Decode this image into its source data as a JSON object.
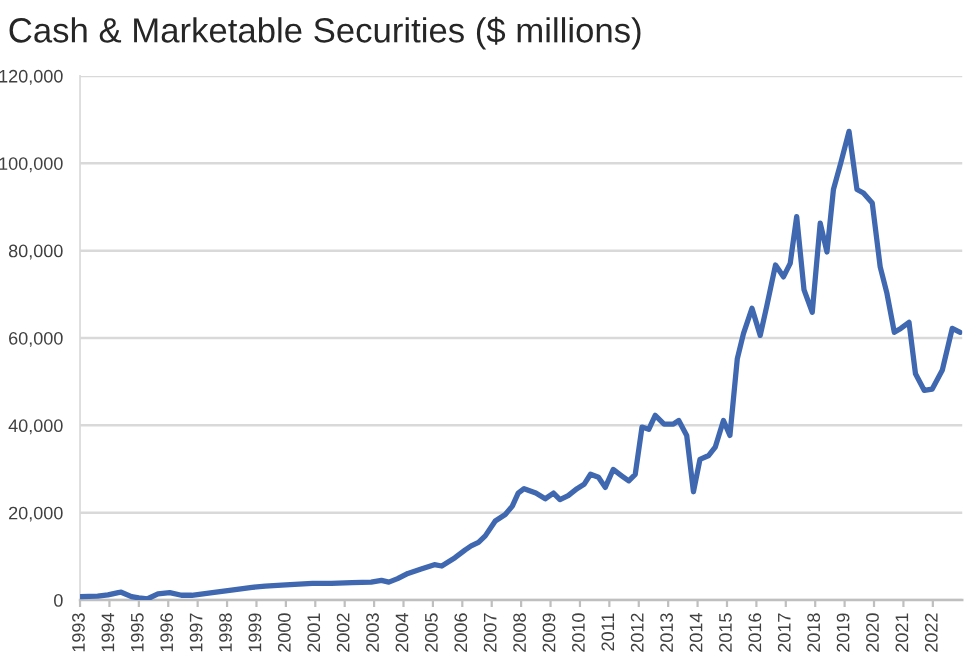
{
  "chart_data": {
    "type": "line",
    "title": "Cash & Marketable Securities ($ millions)",
    "x": [
      1993.0,
      1993.6,
      1993.95,
      1994.3,
      1994.4,
      1994.75,
      1995.0,
      1995.3,
      1995.65,
      1996.05,
      1996.45,
      1996.8,
      1997.5,
      1998.15,
      1998.85,
      1999.3,
      2000.0,
      2000.9,
      2001.55,
      2002.25,
      2002.9,
      2003.25,
      2003.5,
      2003.8,
      2004.15,
      2004.6,
      2005.05,
      2005.3,
      2005.75,
      2006.1,
      2006.3,
      2006.55,
      2006.78,
      2007.12,
      2007.46,
      2007.7,
      2007.9,
      2008.1,
      2008.5,
      2008.82,
      2009.1,
      2009.32,
      2009.6,
      2009.9,
      2010.14,
      2010.36,
      2010.63,
      2010.86,
      2011.13,
      2011.43,
      2011.66,
      2011.88,
      2012.11,
      2012.34,
      2012.56,
      2012.86,
      2013.18,
      2013.36,
      2013.63,
      2013.86,
      2014.08,
      2014.38,
      2014.6,
      2014.88,
      2015.1,
      2015.35,
      2015.56,
      2015.85,
      2016.13,
      2016.35,
      2016.65,
      2016.92,
      2017.15,
      2017.37,
      2017.62,
      2017.9,
      2018.17,
      2018.4,
      2018.62,
      2018.87,
      2019.15,
      2019.42,
      2019.64,
      2019.94,
      2020.21,
      2020.44,
      2020.69,
      2020.91,
      2021.19,
      2021.41,
      2021.71,
      2021.98,
      2022.32,
      2022.66,
      2022.93
    ],
    "values": [
      800,
      900,
      1200,
      1700,
      1800,
      800,
      500,
      300,
      1400,
      1700,
      1100,
      1100,
      1700,
      2300,
      2900,
      3200,
      3500,
      3800,
      3800,
      4000,
      4100,
      4500,
      4100,
      4900,
      6100,
      7100,
      8100,
      7800,
      9700,
      11500,
      12400,
      13200,
      14700,
      18100,
      19600,
      21500,
      24500,
      25500,
      24500,
      23200,
      24500,
      23000,
      23900,
      25500,
      26500,
      28800,
      28100,
      25800,
      29900,
      28400,
      27300,
      28800,
      39600,
      39100,
      42300,
      40300,
      40300,
      41100,
      37700,
      24800,
      32200,
      33100,
      35000,
      41100,
      37700,
      55200,
      61000,
      66800,
      60600,
      67200,
      76700,
      74000,
      77100,
      87800,
      71000,
      65900,
      86300,
      79700,
      94000,
      100100,
      107300,
      94000,
      93200,
      90900,
      76300,
      70200,
      61300,
      62200,
      63600,
      51800,
      48000,
      48300,
      52600,
      62200,
      61300
    ],
    "color": "#3f68b0",
    "line_style": "solid",
    "grid": "y",
    "xlim": [
      1993,
      2023
    ],
    "xticks": [
      1993,
      1994,
      1995,
      1996,
      1997,
      1998,
      1999,
      2000,
      2001,
      2002,
      2003,
      2004,
      2005,
      2006,
      2007,
      2008,
      2009,
      2010,
      2011,
      2012,
      2013,
      2014,
      2015,
      2016,
      2017,
      2018,
      2019,
      2020,
      2021,
      2022
    ],
    "ylim": [
      0,
      120000
    ],
    "yticks": [
      0,
      {
        "value": 20000,
        "label": "20,000"
      },
      {
        "value": 40000,
        "label": "40,000"
      },
      {
        "value": 60000,
        "label": "60,000"
      },
      {
        "value": 80000,
        "label": "80,000"
      },
      {
        "value": 100000,
        "label": "100,000"
      },
      {
        "value": 120000,
        "label": "120,000"
      }
    ]
  }
}
